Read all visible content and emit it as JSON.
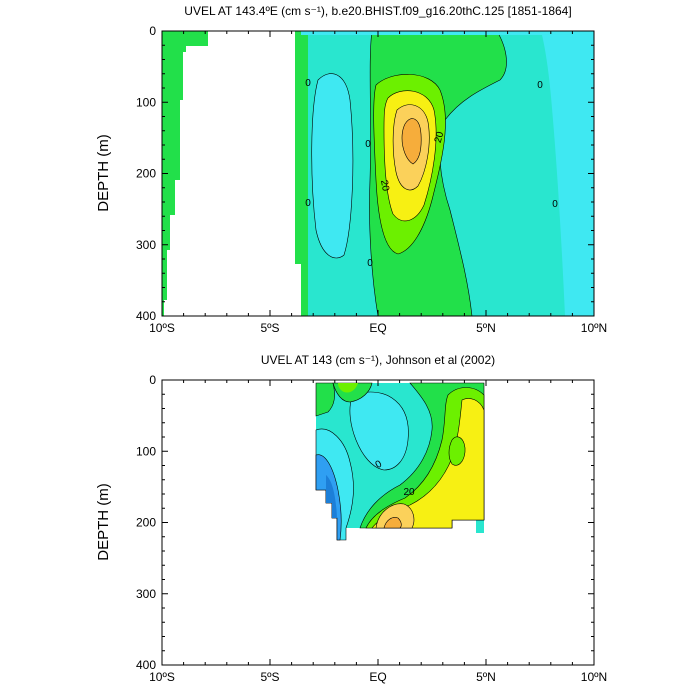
{
  "colors": {
    "cyan": "#3fe8f2",
    "aqua": "#29e6cf",
    "light_green": "#2fed8a",
    "green": "#22e04a",
    "lime": "#6cf000",
    "yellow": "#f7f013",
    "light_orange": "#fbd15a",
    "orange": "#f6ad3b",
    "blue": "#2f9ff2",
    "dark_blue": "#1c7fd8"
  },
  "chart_data": [
    {
      "type": "contour",
      "title": "UVEL AT 143.4ºE (cm s⁻¹), b.e20.BHIST.f09_g16.20thC.125 [1851-1864]",
      "xlabel": "",
      "ylabel": "DEPTH (m)",
      "x_range": [
        -10,
        10
      ],
      "y_range": [
        0,
        400
      ],
      "y_reversed": true,
      "x_tick_labels": [
        "10ºS",
        "5ºS",
        "EQ",
        "5ºN",
        "10ºN"
      ],
      "y_tick_labels": [
        "0",
        "100",
        "200",
        "300",
        "400"
      ],
      "contour_labels": [
        "0",
        "0",
        "0",
        "0",
        "0",
        "0",
        "20",
        "20"
      ],
      "max_core": {
        "lat": 1.5,
        "depth": 150,
        "value_range": ">40"
      }
    },
    {
      "type": "contour",
      "title": "UVEL AT 143 (cm s⁻¹), Johnson et al (2002)",
      "xlabel": "",
      "ylabel": "DEPTH (m)",
      "x_range": [
        -10,
        10
      ],
      "y_range": [
        0,
        400
      ],
      "y_reversed": true,
      "x_tick_labels": [
        "10ºS",
        "5ºS",
        "EQ",
        "5ºN",
        "10ºN"
      ],
      "y_tick_labels": [
        "0",
        "100",
        "200",
        "300",
        "400"
      ],
      "contour_labels": [
        "0",
        "20"
      ],
      "data_extent": {
        "lat": [
          -2.2,
          5
        ],
        "depth": [
          0,
          225
        ]
      }
    }
  ]
}
